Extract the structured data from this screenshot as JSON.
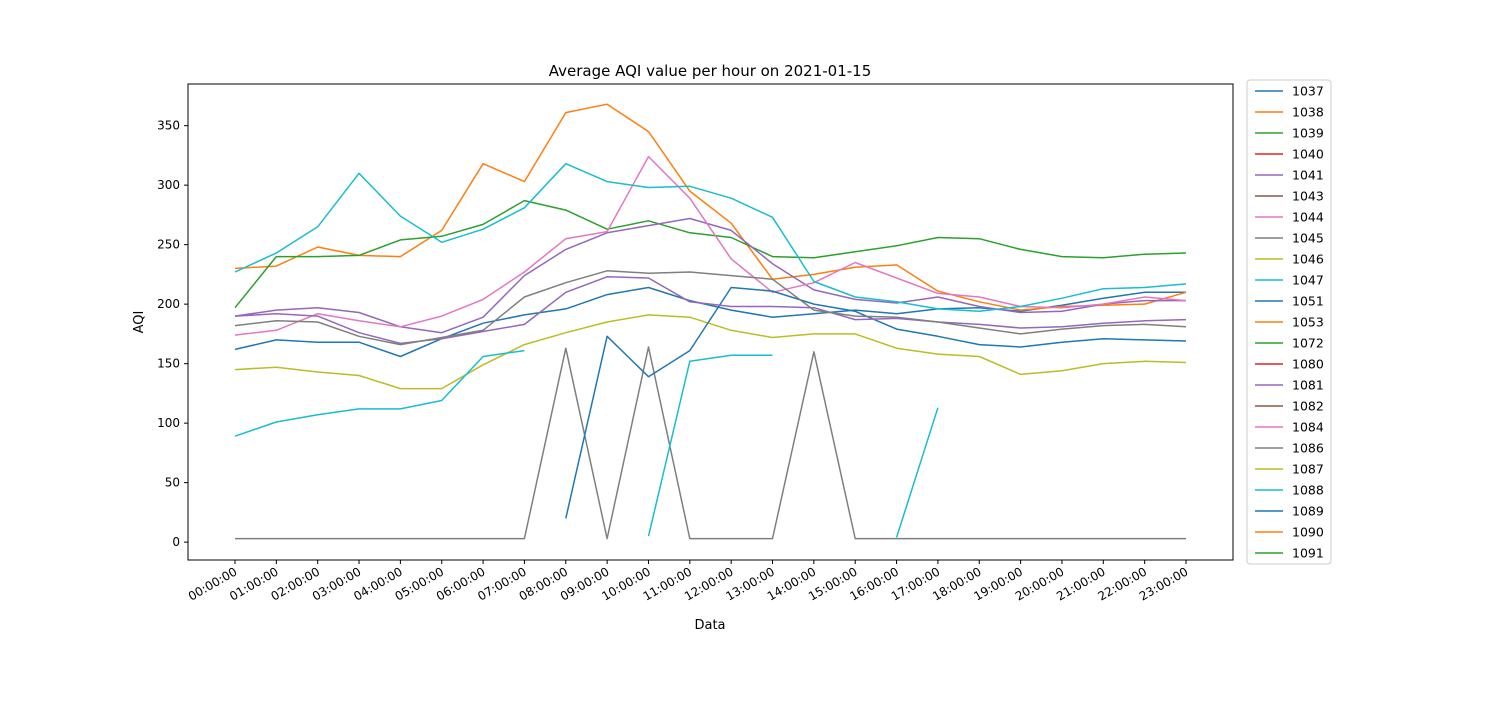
{
  "chart_data": {
    "type": "line",
    "title": "Average AQI value per hour on 2021-01-15",
    "xlabel": "Data",
    "ylabel": "AQI",
    "x": [
      "00:00:00",
      "01:00:00",
      "02:00:00",
      "03:00:00",
      "04:00:00",
      "05:00:00",
      "06:00:00",
      "07:00:00",
      "08:00:00",
      "09:00:00",
      "10:00:00",
      "11:00:00",
      "12:00:00",
      "13:00:00",
      "14:00:00",
      "15:00:00",
      "16:00:00",
      "17:00:00",
      "18:00:00",
      "19:00:00",
      "20:00:00",
      "21:00:00",
      "22:00:00",
      "23:00:00"
    ],
    "ylim": [
      -15,
      385
    ],
    "yticks": [
      0,
      50,
      100,
      150,
      200,
      250,
      300,
      350
    ],
    "grid": false,
    "legend_position": "outside-right",
    "series": [
      {
        "name": "1037",
        "color": "#1f77b4",
        "values": [
          162,
          170,
          168,
          168,
          156,
          171,
          184,
          191,
          196,
          208,
          214,
          203,
          195,
          189,
          192,
          195,
          192,
          196,
          197,
          194,
          199,
          205,
          210,
          210
        ]
      },
      {
        "name": "1038",
        "color": "#ff7f0e",
        "values": [
          230,
          232,
          248,
          241,
          240,
          262,
          318,
          303,
          361,
          368,
          345,
          295,
          268,
          221,
          225,
          231,
          233,
          211,
          202,
          195,
          198,
          199,
          200,
          210
        ]
      },
      {
        "name": "1039",
        "color": "#2ca02c",
        "values": [
          197,
          240,
          240,
          241,
          254,
          257,
          267,
          287,
          279,
          263,
          270,
          260,
          256,
          240,
          239,
          244,
          249,
          256,
          255,
          246,
          240,
          239,
          242,
          243
        ]
      },
      {
        "name": "1040",
        "color": "#d62728",
        "values": [
          null,
          null,
          null,
          null,
          null,
          null,
          null,
          null,
          null,
          null,
          null,
          null,
          null,
          null,
          null,
          null,
          null,
          null,
          null,
          null,
          null,
          null,
          null,
          null
        ]
      },
      {
        "name": "1041",
        "color": "#9467bd",
        "values": [
          190,
          195,
          197,
          193,
          181,
          176,
          189,
          224,
          246,
          260,
          266,
          272,
          262,
          234,
          212,
          204,
          201,
          206,
          198,
          193,
          194,
          200,
          203,
          203
        ]
      },
      {
        "name": "1043",
        "color": "#8c564b",
        "values": [
          null,
          null,
          null,
          null,
          null,
          null,
          null,
          null,
          null,
          null,
          null,
          null,
          null,
          null,
          null,
          null,
          null,
          null,
          null,
          null,
          null,
          null,
          null,
          null
        ]
      },
      {
        "name": "1044",
        "color": "#e377c2",
        "values": [
          174,
          178,
          192,
          186,
          181,
          190,
          204,
          227,
          255,
          261,
          324,
          289,
          238,
          210,
          218,
          235,
          222,
          209,
          206,
          198,
          197,
          200,
          206,
          203
        ]
      },
      {
        "name": "1045",
        "color": "#7f7f7f",
        "values": [
          3,
          3,
          3,
          3,
          3,
          3,
          3,
          3,
          163,
          3,
          164,
          3,
          3,
          3,
          160,
          3,
          3,
          3,
          3,
          3,
          3,
          3,
          3,
          3
        ]
      },
      {
        "name": "1046",
        "color": "#bcbd22",
        "values": [
          145,
          147,
          143,
          140,
          129,
          129,
          149,
          166,
          176,
          185,
          191,
          189,
          178,
          172,
          175,
          175,
          163,
          158,
          156,
          141,
          144,
          150,
          152,
          151
        ]
      },
      {
        "name": "1047",
        "color": "#17becf",
        "values": [
          227,
          243,
          265,
          310,
          274,
          252,
          263,
          281,
          318,
          303,
          298,
          299,
          289,
          273,
          219,
          206,
          202,
          196,
          194,
          198,
          205,
          213,
          214,
          217
        ]
      },
      {
        "name": "1051",
        "color": "#1f77b4",
        "values": [
          null,
          null,
          null,
          null,
          null,
          null,
          null,
          null,
          20,
          173,
          139,
          161,
          214,
          211,
          200,
          194,
          179,
          173,
          166,
          164,
          168,
          171,
          170,
          169
        ]
      },
      {
        "name": "1053",
        "color": "#ff7f0e",
        "values": [
          null,
          null,
          null,
          null,
          null,
          null,
          null,
          null,
          null,
          null,
          null,
          null,
          null,
          null,
          null,
          null,
          null,
          null,
          null,
          null,
          null,
          null,
          null,
          null
        ]
      },
      {
        "name": "1072",
        "color": "#2ca02c",
        "values": [
          null,
          null,
          null,
          null,
          null,
          null,
          null,
          null,
          null,
          null,
          null,
          null,
          null,
          null,
          null,
          null,
          null,
          null,
          null,
          null,
          null,
          null,
          null,
          null
        ]
      },
      {
        "name": "1080",
        "color": "#d62728",
        "values": [
          null,
          null,
          null,
          null,
          null,
          null,
          null,
          null,
          null,
          null,
          null,
          null,
          null,
          null,
          null,
          null,
          null,
          null,
          null,
          null,
          null,
          null,
          null,
          null
        ]
      },
      {
        "name": "1081",
        "color": "#9467bd",
        "values": [
          190,
          192,
          190,
          176,
          167,
          171,
          177,
          183,
          210,
          223,
          222,
          202,
          198,
          198,
          197,
          187,
          188,
          185,
          183,
          180,
          181,
          184,
          186,
          187
        ]
      },
      {
        "name": "1082",
        "color": "#8c564b",
        "values": [
          null,
          null,
          null,
          null,
          null,
          null,
          null,
          null,
          null,
          null,
          null,
          null,
          null,
          null,
          null,
          null,
          null,
          null,
          null,
          null,
          null,
          null,
          null,
          null
        ]
      },
      {
        "name": "1084",
        "color": "#e377c2",
        "values": [
          null,
          null,
          null,
          null,
          null,
          null,
          null,
          null,
          null,
          null,
          null,
          null,
          null,
          null,
          null,
          null,
          null,
          null,
          null,
          null,
          null,
          null,
          null,
          null
        ]
      },
      {
        "name": "1086",
        "color": "#7f7f7f",
        "values": [
          182,
          186,
          185,
          173,
          166,
          172,
          178,
          206,
          218,
          228,
          226,
          227,
          224,
          221,
          195,
          190,
          189,
          185,
          180,
          175,
          179,
          182,
          183,
          181
        ]
      },
      {
        "name": "1087",
        "color": "#bcbd22",
        "values": [
          null,
          null,
          null,
          null,
          null,
          null,
          null,
          null,
          null,
          null,
          null,
          null,
          null,
          null,
          null,
          null,
          null,
          null,
          null,
          null,
          null,
          null,
          null,
          null
        ]
      },
      {
        "name": "1088",
        "color": "#17becf",
        "values": [
          89,
          101,
          107,
          112,
          112,
          119,
          156,
          161,
          null,
          null,
          5,
          152,
          157,
          157,
          null,
          null,
          4,
          113,
          null,
          null,
          null,
          null,
          null,
          null
        ]
      },
      {
        "name": "1089",
        "color": "#1f77b4",
        "values": [
          null,
          null,
          null,
          null,
          null,
          null,
          null,
          null,
          null,
          null,
          null,
          null,
          null,
          null,
          null,
          null,
          null,
          null,
          null,
          null,
          null,
          null,
          null,
          null
        ]
      },
      {
        "name": "1090",
        "color": "#ff7f0e",
        "values": [
          null,
          null,
          null,
          null,
          null,
          null,
          null,
          null,
          null,
          null,
          null,
          null,
          null,
          null,
          null,
          null,
          null,
          null,
          null,
          null,
          null,
          null,
          null,
          null
        ]
      },
      {
        "name": "1091",
        "color": "#2ca02c",
        "values": [
          null,
          null,
          null,
          null,
          null,
          null,
          null,
          null,
          null,
          null,
          null,
          null,
          null,
          null,
          null,
          null,
          null,
          null,
          null,
          null,
          null,
          null,
          null,
          null
        ]
      }
    ]
  }
}
